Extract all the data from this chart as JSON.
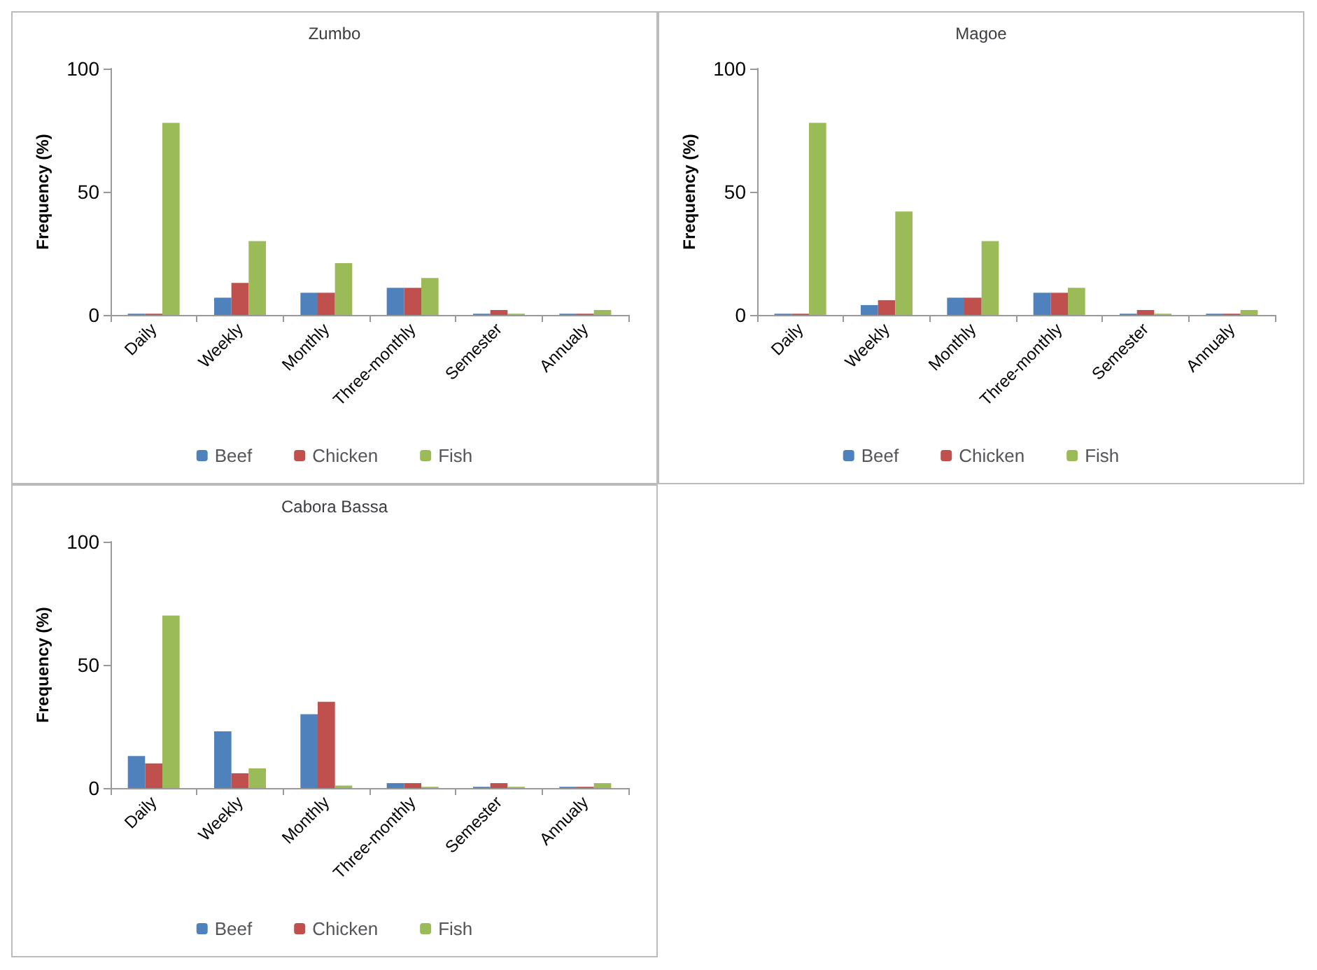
{
  "chart_data": [
    {
      "type": "bar",
      "title": "Zumbo",
      "ylabel": "Frequency (%)",
      "categories": [
        "Daily",
        "Weekly",
        "Monthly",
        "Three-monthly",
        "Semester",
        "Annualy"
      ],
      "ylim": [
        0,
        100
      ],
      "yticks": [
        0,
        50,
        100
      ],
      "grid": false,
      "legend": "bottom",
      "series": [
        {
          "name": "Beef",
          "color": "#4f81bd",
          "values": [
            0.5,
            7,
            9,
            11,
            0.5,
            0.5
          ]
        },
        {
          "name": "Chicken",
          "color": "#c0504d",
          "values": [
            0.5,
            13,
            9,
            11,
            2,
            0.5
          ]
        },
        {
          "name": "Fish",
          "color": "#9bbb59",
          "values": [
            78,
            30,
            21,
            15,
            0.5,
            2
          ]
        }
      ]
    },
    {
      "type": "bar",
      "title": "Magoe",
      "ylabel": "Frequency (%)",
      "categories": [
        "Daily",
        "Weekly",
        "Monthly",
        "Three-monthly",
        "Semester",
        "Annualy"
      ],
      "ylim": [
        0,
        100
      ],
      "yticks": [
        0,
        50,
        100
      ],
      "grid": false,
      "legend": "bottom",
      "series": [
        {
          "name": "Beef",
          "color": "#4f81bd",
          "values": [
            0.5,
            4,
            7,
            9,
            0.5,
            0.5
          ]
        },
        {
          "name": "Chicken",
          "color": "#c0504d",
          "values": [
            0.5,
            6,
            7,
            9,
            2,
            0.5
          ]
        },
        {
          "name": "Fish",
          "color": "#9bbb59",
          "values": [
            78,
            42,
            30,
            11,
            0.5,
            2
          ]
        }
      ]
    },
    {
      "type": "bar",
      "title": "Cabora Bassa",
      "ylabel": "Frequency (%)",
      "categories": [
        "Daily",
        "Weekly",
        "Monthly",
        "Three-monthly",
        "Semester",
        "Annualy"
      ],
      "ylim": [
        0,
        100
      ],
      "yticks": [
        0,
        50,
        100
      ],
      "grid": false,
      "legend": "bottom",
      "series": [
        {
          "name": "Beef",
          "color": "#4f81bd",
          "values": [
            13,
            23,
            30,
            2,
            0.5,
            0.5
          ]
        },
        {
          "name": "Chicken",
          "color": "#c0504d",
          "values": [
            10,
            6,
            35,
            2,
            2,
            0.5
          ]
        },
        {
          "name": "Fish",
          "color": "#9bbb59",
          "values": [
            70,
            8,
            1,
            0.5,
            0.5,
            2
          ]
        }
      ]
    }
  ]
}
